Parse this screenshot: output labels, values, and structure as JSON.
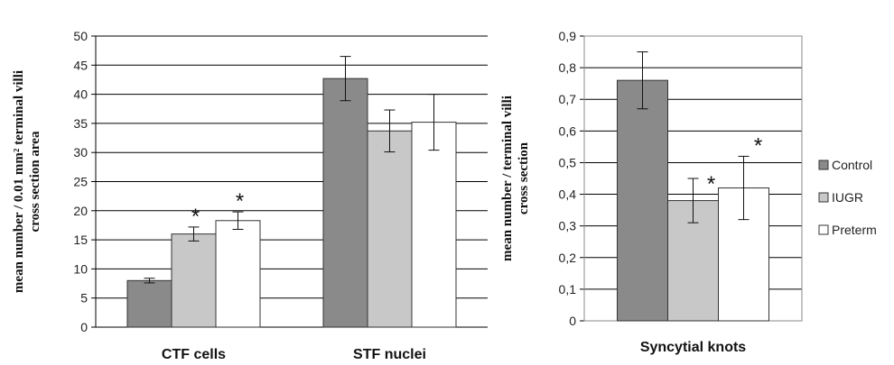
{
  "chart_data": [
    {
      "type": "bar",
      "categories": [
        "CTF cells",
        "STF nuclei"
      ],
      "ylabel_lines": [
        "mean number / 0.01 mm² terminal villi",
        "cross section area"
      ],
      "ylim": [
        0,
        50
      ],
      "yticks": [
        "0",
        "5",
        "10",
        "15",
        "20",
        "25",
        "30",
        "35",
        "40",
        "45",
        "50"
      ],
      "grid": true,
      "series": [
        {
          "name": "Control",
          "color": "#8a8a8a",
          "values": [
            8.0,
            42.7
          ],
          "errors": [
            0.4,
            3.8
          ],
          "significance": [
            "",
            ""
          ]
        },
        {
          "name": "IUGR",
          "color": "#c8c8c8",
          "values": [
            16.0,
            33.7
          ],
          "errors": [
            1.2,
            3.6
          ],
          "significance": [
            "*",
            ""
          ]
        },
        {
          "name": "Preterm",
          "color": "#ffffff",
          "values": [
            18.3,
            35.2
          ],
          "errors": [
            1.5,
            4.8
          ],
          "significance": [
            "*",
            ""
          ]
        }
      ]
    },
    {
      "type": "bar",
      "categories": [
        "Syncytial knots"
      ],
      "ylabel_lines": [
        "mean number / terminal villi",
        "cross section"
      ],
      "ylim": [
        0,
        0.9
      ],
      "yticks": [
        "0",
        "0,1",
        "0,2",
        "0,3",
        "0,4",
        "0,5",
        "0,6",
        "0,7",
        "0,8",
        "0,9"
      ],
      "grid": true,
      "legend_position": "right",
      "series": [
        {
          "name": "Control",
          "color": "#8a8a8a",
          "values": [
            0.76
          ],
          "errors": [
            0.09
          ],
          "significance": [
            ""
          ]
        },
        {
          "name": "IUGR",
          "color": "#c8c8c8",
          "values": [
            0.38
          ],
          "errors": [
            0.07
          ],
          "significance": [
            "*"
          ]
        },
        {
          "name": "Preterm",
          "color": "#ffffff",
          "values": [
            0.42
          ],
          "errors": [
            0.1
          ],
          "significance": [
            "*"
          ]
        }
      ]
    }
  ],
  "legend": {
    "items": [
      {
        "label": "Control",
        "color": "#8a8a8a"
      },
      {
        "label": "IUGR",
        "color": "#c8c8c8"
      },
      {
        "label": "Preterm",
        "color": "#ffffff"
      }
    ]
  }
}
